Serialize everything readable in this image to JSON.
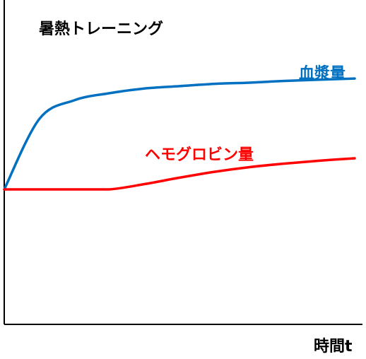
{
  "chart_data": {
    "type": "line",
    "title": "暑熱トレーニング",
    "xlabel": "時間t",
    "ylabel": "",
    "grid": false,
    "x": [
      0,
      0.1,
      0.2,
      0.3,
      0.4,
      0.5,
      0.6,
      0.7,
      0.8,
      0.9,
      1.0
    ],
    "series": [
      {
        "name": "血漿量",
        "color": "#0070c0",
        "values": [
          0.0,
          0.6,
          0.76,
          0.82,
          0.86,
          0.88,
          0.9,
          0.91,
          0.925,
          0.935,
          0.945
        ]
      },
      {
        "name": "ヘモグロビン量",
        "color": "#ff0000",
        "values": [
          0.0,
          0.0,
          0.0,
          0.0,
          0.045,
          0.1,
          0.15,
          0.19,
          0.22,
          0.245,
          0.265
        ]
      }
    ]
  }
}
